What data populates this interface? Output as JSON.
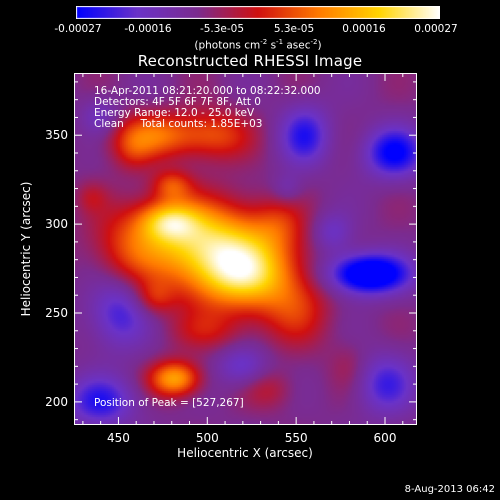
{
  "colorbar": {
    "ticks": [
      "-0.00027",
      "-0.00016",
      "-5.3e-05",
      "5.3e-05",
      "0.00016",
      "0.00027"
    ],
    "unit_text": "(photons cm⁻² s⁻¹ asec⁻²)",
    "colors": [
      "#0000ff",
      "#6a32c8",
      "#7b2b8f",
      "#d01010",
      "#ff7a00",
      "#ffd400",
      "#ffffff"
    ]
  },
  "title": "Reconstructed RHESSI Image",
  "info": {
    "time_range": "16-Apr-2011 08:21:20.000 to 08:22:32.000",
    "detectors": "Detectors: 4F 5F 6F 7F 8F, Att 0",
    "energy": "Energy Range: 12.0 - 25.0 keV",
    "clean": "Clean     Total counts: 1.85E+03",
    "peak": "Position of Peak = [527,267]"
  },
  "axes": {
    "xlabel": "Heliocentric X (arcsec)",
    "ylabel": "Heliocentric Y (arcsec)",
    "xticks": [
      "450",
      "500",
      "550",
      "600"
    ],
    "yticks": [
      "200",
      "250",
      "300",
      "350"
    ]
  },
  "timestamp": "8-Aug-2013 06:42",
  "chart_data": {
    "type": "heatmap",
    "title": "Reconstructed RHESSI Image",
    "xlabel": "Heliocentric X (arcsec)",
    "ylabel": "Heliocentric Y (arcsec)",
    "xlim": [
      425,
      618
    ],
    "ylim": [
      187,
      385
    ],
    "x_ticks": [
      450,
      500,
      550,
      600
    ],
    "y_ticks": [
      200,
      250,
      300,
      350
    ],
    "colorbar_range": [
      -0.00027,
      0.00027
    ],
    "colorbar_ticks": [
      -0.00027,
      -0.00016,
      -5.3e-05,
      5.3e-05,
      0.00016,
      0.00027
    ],
    "peak": [
      527,
      267
    ],
    "blobs": [
      {
        "x": 500,
        "y": 290,
        "sx": 28,
        "sy": 16,
        "amp": 0.00026
      },
      {
        "x": 520,
        "y": 270,
        "sx": 22,
        "sy": 14,
        "amp": 0.00024
      },
      {
        "x": 478,
        "y": 302,
        "sx": 12,
        "sy": 8,
        "amp": 0.00018
      },
      {
        "x": 480,
        "y": 322,
        "sx": 8,
        "sy": 6,
        "amp": 0.00012
      },
      {
        "x": 470,
        "y": 350,
        "sx": 18,
        "sy": 9,
        "amp": 0.00016
      },
      {
        "x": 505,
        "y": 350,
        "sx": 14,
        "sy": 10,
        "amp": 0.00012
      },
      {
        "x": 455,
        "y": 285,
        "sx": 14,
        "sy": 16,
        "amp": 8e-05
      },
      {
        "x": 550,
        "y": 250,
        "sx": 14,
        "sy": 14,
        "amp": 9e-05
      },
      {
        "x": 540,
        "y": 300,
        "sx": 10,
        "sy": 10,
        "amp": 6e-05
      },
      {
        "x": 482,
        "y": 213,
        "sx": 10,
        "sy": 7,
        "amp": 0.00022
      },
      {
        "x": 470,
        "y": 258,
        "sx": 8,
        "sy": 7,
        "amp": 9e-05
      },
      {
        "x": 535,
        "y": 207,
        "sx": 10,
        "sy": 8,
        "amp": 6e-05
      },
      {
        "x": 500,
        "y": 240,
        "sx": 16,
        "sy": 8,
        "amp": 7e-05
      },
      {
        "x": 458,
        "y": 340,
        "sx": 8,
        "sy": 8,
        "amp": 6e-05
      },
      {
        "x": 435,
        "y": 315,
        "sx": 6,
        "sy": 6,
        "amp": 5e-05
      },
      {
        "x": 580,
        "y": 220,
        "sx": 8,
        "sy": 10,
        "amp": 4e-05
      },
      {
        "x": 590,
        "y": 272,
        "sx": 16,
        "sy": 8,
        "amp": -0.00027
      },
      {
        "x": 605,
        "y": 340,
        "sx": 12,
        "sy": 10,
        "amp": -0.00018
      },
      {
        "x": 555,
        "y": 350,
        "sx": 10,
        "sy": 12,
        "amp": -0.00014
      },
      {
        "x": 450,
        "y": 250,
        "sx": 12,
        "sy": 14,
        "amp": -0.00013
      },
      {
        "x": 440,
        "y": 200,
        "sx": 14,
        "sy": 10,
        "amp": -0.00014
      },
      {
        "x": 520,
        "y": 220,
        "sx": 10,
        "sy": 8,
        "amp": -0.0001
      },
      {
        "x": 600,
        "y": 210,
        "sx": 12,
        "sy": 12,
        "amp": -0.00012
      },
      {
        "x": 570,
        "y": 295,
        "sx": 8,
        "sy": 8,
        "amp": -9e-05
      },
      {
        "x": 545,
        "y": 320,
        "sx": 6,
        "sy": 6,
        "amp": -6e-05
      },
      {
        "x": 440,
        "y": 360,
        "sx": 8,
        "sy": 8,
        "amp": -8e-05
      }
    ]
  }
}
